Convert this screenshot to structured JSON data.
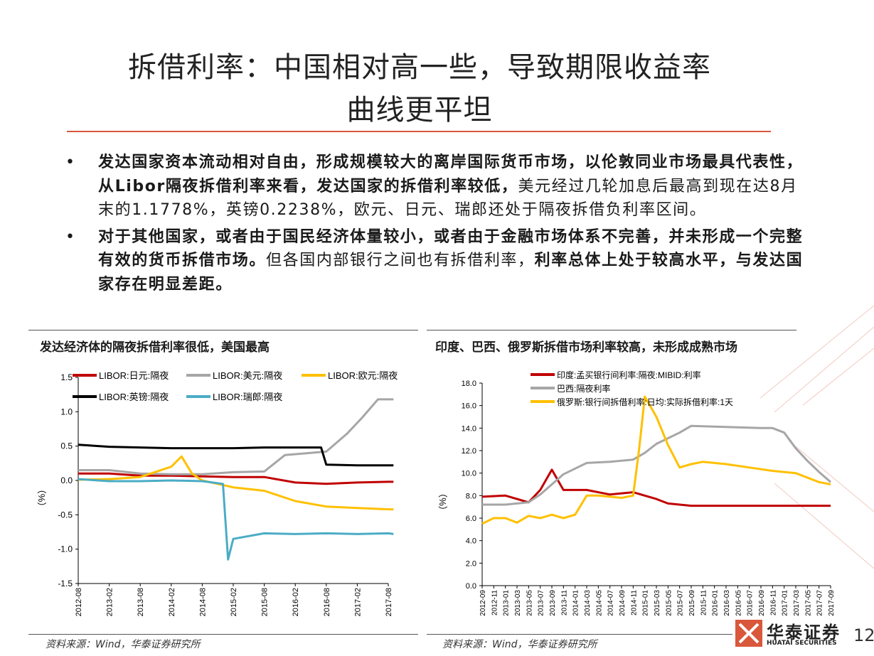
{
  "title": {
    "line1": "拆借利率：中国相对高一些，导致期限收益率",
    "line2": "曲线更平坦"
  },
  "bullets": [
    {
      "bold": "发达国家资本流动相对自由，形成规模较大的离岸国际货币市场，以伦敦同业市场最具代表性，从Libor隔夜拆借利率来看，发达国家的拆借利率较低，",
      "normal": "美元经过几轮加息后最高到现在达8月末的1.1778%，英镑0.2238%，欧元、日元、瑞郎还处于隔夜拆借负利率区间。"
    },
    {
      "bold": "对于其他国家，或者由于国民经济体量较小，或者由于金融市场体系不完善，并未形成一个完整有效的货币拆借市场。",
      "normal": "但各国内部银行之间也有拆借利率，",
      "bold2": "利率总体上处于较高水平，与发达国家存在明显差距。"
    }
  ],
  "left_panel": {
    "title": "发达经济体的隔夜拆借利率很低，美国最高",
    "source": "资料来源：Wind，华泰证券研究所",
    "ylabel": "（%）"
  },
  "right_panel": {
    "title": "印度、巴西、俄罗斯拆借市场利率较高，未形成成熟市场",
    "source": "资料来源：Wind，华泰证券研究所",
    "ylabel": "（%）"
  },
  "logo": {
    "cn": "华泰证券",
    "en": "HUATAI SECURITIES"
  },
  "page_number": "12",
  "chart_data": [
    {
      "type": "line",
      "title": "发达经济体的隔夜拆借利率很低，美国最高",
      "ylabel": "（%）",
      "ylim": [
        -1.5,
        1.5
      ],
      "yticks": [
        "1.5",
        "1.0",
        "0.5",
        "0.0",
        "-0.5",
        "-1.0",
        "-1.5"
      ],
      "xticks": [
        "2012-08",
        "2013-02",
        "2013-08",
        "2014-02",
        "2014-08",
        "2015-02",
        "2015-08",
        "2016-02",
        "2016-08",
        "2017-02",
        "2017-08"
      ],
      "legend": "top",
      "series": [
        {
          "name": "LIBOR:日元:隔夜",
          "color": "#c00000",
          "x": [
            "2012-08",
            "2013-02",
            "2013-08",
            "2014-02",
            "2014-08",
            "2015-02",
            "2015-08",
            "2016-02",
            "2016-08",
            "2017-02",
            "2017-08",
            "2017-09"
          ],
          "values": [
            0.1,
            0.1,
            0.07,
            0.07,
            0.06,
            0.05,
            0.05,
            -0.03,
            -0.05,
            -0.03,
            -0.02,
            -0.02
          ]
        },
        {
          "name": "LIBOR:美元:隔夜",
          "color": "#a6a6a6",
          "x": [
            "2012-08",
            "2013-02",
            "2013-08",
            "2014-02",
            "2014-08",
            "2015-02",
            "2015-08",
            "2015-12",
            "2016-08",
            "2016-12",
            "2017-03",
            "2017-06",
            "2017-08",
            "2017-09"
          ],
          "values": [
            0.15,
            0.15,
            0.1,
            0.09,
            0.09,
            0.12,
            0.13,
            0.37,
            0.42,
            0.68,
            0.92,
            1.18,
            1.18,
            1.18
          ]
        },
        {
          "name": "LIBOR:欧元:隔夜",
          "color": "#ffc000",
          "x": [
            "2012-08",
            "2013-02",
            "2013-08",
            "2014-02",
            "2014-04",
            "2014-06",
            "2014-08",
            "2015-02",
            "2015-08",
            "2016-02",
            "2016-08",
            "2017-02",
            "2017-08",
            "2017-09"
          ],
          "values": [
            0.01,
            0.02,
            0.05,
            0.2,
            0.35,
            0.1,
            0.0,
            -0.1,
            -0.15,
            -0.3,
            -0.38,
            -0.4,
            -0.42,
            -0.42
          ]
        },
        {
          "name": "LIBOR:英镑:隔夜",
          "color": "#000000",
          "x": [
            "2012-08",
            "2013-02",
            "2013-08",
            "2014-02",
            "2014-08",
            "2015-02",
            "2015-08",
            "2016-02",
            "2016-07",
            "2016-08",
            "2017-02",
            "2017-08",
            "2017-09"
          ],
          "values": [
            0.52,
            0.49,
            0.48,
            0.47,
            0.47,
            0.47,
            0.48,
            0.48,
            0.48,
            0.23,
            0.22,
            0.22,
            0.22
          ]
        },
        {
          "name": "LIBOR:瑞郎:隔夜",
          "color": "#4bacc6",
          "x": [
            "2012-08",
            "2013-02",
            "2013-08",
            "2014-02",
            "2014-08",
            "2014-12",
            "2015-01",
            "2015-02",
            "2015-08",
            "2016-02",
            "2016-08",
            "2017-02",
            "2017-08",
            "2017-09"
          ],
          "values": [
            0.02,
            -0.01,
            -0.01,
            0.0,
            -0.01,
            -0.05,
            -1.15,
            -0.85,
            -0.77,
            -0.78,
            -0.77,
            -0.78,
            -0.77,
            -0.78
          ]
        }
      ]
    },
    {
      "type": "line",
      "title": "印度、巴西、俄罗斯拆借市场利率较高，未形成成熟市场",
      "ylabel": "（%）",
      "ylim": [
        0,
        18
      ],
      "yticks": [
        "18.0",
        "16.0",
        "14.0",
        "12.0",
        "10.0",
        "8.0",
        "6.0",
        "4.0",
        "2.0",
        "0.0"
      ],
      "xticks": [
        "2012-09",
        "2012-11",
        "2013-01",
        "2013-03",
        "2013-05",
        "2013-07",
        "2013-09",
        "2013-11",
        "2014-01",
        "2014-03",
        "2014-05",
        "2014-07",
        "2014-09",
        "2014-11",
        "2015-01",
        "2015-03",
        "2015-05",
        "2015-07",
        "2015-09",
        "2015-11",
        "2016-01",
        "2016-03",
        "2016-05",
        "2016-07",
        "2016-09",
        "2016-11",
        "2017-01",
        "2017-03",
        "2017-05",
        "2017-07",
        "2017-09"
      ],
      "legend": "top",
      "series": [
        {
          "name": "印度:孟买银行间利率:隔夜:MIBID:利率",
          "color": "#c00000",
          "x": [
            "2012-09",
            "2013-01",
            "2013-05",
            "2013-07",
            "2013-09",
            "2013-11",
            "2014-03",
            "2014-07",
            "2014-11",
            "2015-03",
            "2015-05",
            "2015-09",
            "2016-03",
            "2016-09",
            "2017-03",
            "2017-09"
          ],
          "values": [
            7.9,
            8.0,
            7.4,
            8.5,
            10.3,
            8.5,
            8.5,
            8.1,
            8.3,
            7.7,
            7.3,
            7.1,
            7.1,
            7.1,
            7.1,
            7.1
          ]
        },
        {
          "name": "巴西:隔夜利率",
          "color": "#a6a6a6",
          "x": [
            "2012-09",
            "2013-01",
            "2013-05",
            "2013-07",
            "2013-09",
            "2013-11",
            "2014-01",
            "2014-03",
            "2014-07",
            "2014-11",
            "2015-01",
            "2015-03",
            "2015-07",
            "2015-09",
            "2016-03",
            "2016-09",
            "2016-11",
            "2017-01",
            "2017-03",
            "2017-05",
            "2017-07",
            "2017-09"
          ],
          "values": [
            7.2,
            7.2,
            7.4,
            8.1,
            9.0,
            9.9,
            10.4,
            10.9,
            11.0,
            11.2,
            11.8,
            12.6,
            13.6,
            14.2,
            14.1,
            14.0,
            14.0,
            13.6,
            12.2,
            11.1,
            10.1,
            9.2
          ]
        },
        {
          "name": "俄罗斯:银行间拆借利率:日均:实际拆借利率:1天",
          "color": "#ffc000",
          "x": [
            "2012-09",
            "2012-11",
            "2013-01",
            "2013-03",
            "2013-05",
            "2013-07",
            "2013-09",
            "2013-11",
            "2014-01",
            "2014-03",
            "2014-05",
            "2014-07",
            "2014-09",
            "2014-11",
            "2014-12",
            "2015-01",
            "2015-03",
            "2015-05",
            "2015-07",
            "2015-09",
            "2015-11",
            "2016-03",
            "2016-07",
            "2016-11",
            "2017-03",
            "2017-07",
            "2017-09"
          ],
          "values": [
            5.5,
            6.0,
            6.0,
            5.6,
            6.2,
            6.0,
            6.3,
            6.0,
            6.3,
            8.0,
            8.0,
            7.9,
            7.8,
            8.0,
            12.0,
            16.8,
            15.0,
            12.5,
            10.5,
            10.8,
            11.0,
            10.8,
            10.5,
            10.2,
            10.0,
            9.2,
            9.0
          ]
        }
      ]
    }
  ]
}
